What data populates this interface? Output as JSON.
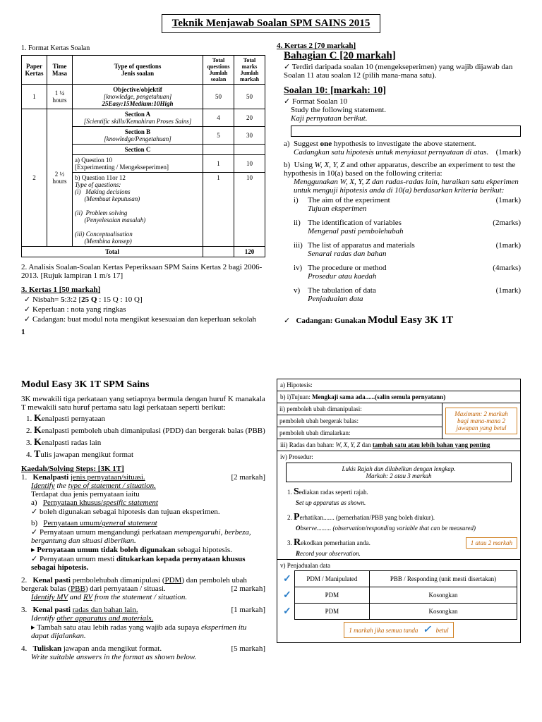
{
  "title": "Teknik Menjawab Soalan SPM SAINS 2015",
  "left": {
    "sec1": "1.   Format Kertas Soalan",
    "tbl": {
      "head": [
        "Paper\nKertas",
        "Time\nMasa",
        "Type of questions\nJenis soalan",
        "Total questions\nJumlah soalan",
        "Total marks\nJumlah markah"
      ],
      "r1": [
        "1",
        "1 ¼ hours",
        "Objective/objektif\n[knowledge, pengetahuan]\n25Easy:15Medium:10High",
        "50",
        "50"
      ],
      "r2_paper": "2",
      "r2_time": "2 ½ hours",
      "secA": [
        "Section A\n[Scientific skills/Kemahiran Proses Sains]",
        "4",
        "20"
      ],
      "secB": [
        "Section B\n[knowledge/Pengetahuan]",
        "5",
        "30"
      ],
      "secC_h": "Section C",
      "secC_a": [
        "a)  Question 10\n[Experimenting / Mengekseperimen]",
        "1",
        "10"
      ],
      "secC_b": [
        "b)  Question 11or 12\nType of questions:\n(i)   Making decisions\n      (Membuat keputusan)\n\n(ii)  Problem solving\n      (Penyelesaian masalah)\n\n(iii) Conceptualisation\n      (Membina konsep)",
        "1",
        "10"
      ],
      "total": [
        "Total",
        "",
        "120"
      ]
    },
    "sec2": "2.   Analisis Soalan-Soalan Kertas Peperiksaan SPM Sains Kertas 2 bagi 2006-2013. [Rujuk lampiran 1 m/s 17]",
    "sec3_h": "3.  Kertas 1 [50 markah]",
    "sec3_items": [
      "Nisbah= 5:3:2 [25 Q : 15 Q : 10 Q]",
      "Keperluan : nota yang ringkas",
      "Cadangan: buat modul nota mengikut kesesuaian dan keperluan sekolah"
    ],
    "pagenum": "1"
  },
  "right": {
    "sec4_h": "4.  Kertas 2 [70 markah]",
    "bahC": "Bahagian C [20 markah]",
    "bahC_desc": "Terdiri daripada soalan 10 (mengekseperimen) yang wajib dijawab dan Soalan 11 atau soalan 12 (pilih mana-mana satu).",
    "s10_h": "Soalan 10: [markah: 10]",
    "s10_fmt": "Format Soalan 10",
    "s10_study": "Study the following statement.",
    "s10_kaji": "Kaji pernyataan berikut.",
    "a_en": "a)  Suggest one hypothesis to investigate the above statement.",
    "a_my": "Cadangkan satu hipotesis untuk menyiasat pernyataan di atas.",
    "a_mk": "(1mark)",
    "b_en": "b)  Using W, X, Y, Z and other apparatus, describe an experiment to test the hypothesis in 10(a) based on the following criteria:",
    "b_my": "Menggunakan W, X, Y, Z dan radas-radas lain, huraikan satu ekperimen untuk menguji hipotesis anda di 10(a) berdasarkan kriteria berikut:",
    "b_items": [
      {
        "n": "i)",
        "en": "The aim of the experiment",
        "my": "Tujuan eksperimen",
        "mk": "(1mark)"
      },
      {
        "n": "ii)",
        "en": "The identification of variables",
        "my": "Mengenal pasti pembolehubah",
        "mk": "(2marks)"
      },
      {
        "n": "iii)",
        "en": "The list of apparatus and materials",
        "my": "Senarai radas dan bahan",
        "mk": "(1mark)"
      },
      {
        "n": "iv)",
        "en": "The procedure or method",
        "my": "Prosedur atau kaedah",
        "mk": "(4marks)"
      },
      {
        "n": "v)",
        "en": "The tabulation of data",
        "my": "Penjadualan data",
        "mk": "(1mark)"
      }
    ],
    "cadangan": "Cadangan: Gunakan Modul Easy 3K 1T"
  },
  "p2left": {
    "h": "Modul Easy 3K 1T SPM Sains",
    "intro": "3K mewakili tiga perkataan yang setiapnya bermula dengan huruf K manakala T mewakili satu huruf pertama satu lagi perkataan seperti berikut:",
    "klist": [
      "Kenalpasti pernyataan",
      "Kenalpasti pemboleh ubah dimanipulasi (PDD) dan bergerak balas (PBB)",
      "Kenalpasti radas lain",
      "Tulis jawapan mengikut format"
    ],
    "steps_h": "Kaedah/Solving Steps: [3K 1T]",
    "s1_h": "1.   Kenalpasti jenis pernyataan/situasi.",
    "s1_mk": "[2 markah]",
    "s1_en": "Identify the type of statement / situation.",
    "s1_t": "Terdapat dua jenis pernyataan iaitu",
    "s1_a": "a)   Pernyataan khusus/spesific statement",
    "s1_a_b": "boleh digunakan sebagai hipotesis dan tujuan eksperimen.",
    "s1_b": "b)   Pernyataan umum/general statement",
    "s1_b_b1": "Pernyataan umum mengandungi perkataan mempengaruhi, berbeza, bergantung dan situasi diberikan.",
    "s1_b_b2": "Pernyataan umum tidak boleh digunakan sebagai hipotesis.",
    "s1_b_b3": "Pernyataan umum mesti ditukarkan kepada pernyataan khusus sebagai hipotesis.",
    "s2_h": "2.   Kenal pasti pembolehubah dimanipulasi (PDM) dan pemboleh ubah bergerak balas (PBB) dari pernyataan / situasi.",
    "s2_mk": "[2 markah]",
    "s2_en": "Identify MV and RV from the statement / situation.",
    "s3_h": "3.   Kenal pasti radas dan bahan lain.",
    "s3_mk": "[1 markah]",
    "s3_en": "Identify other apparatus and materials.",
    "s3_b": "Tambah satu atau lebih radas yang wajib ada supaya eksperimen itu dapat dijalankan.",
    "s4_h": "4.   Tuliskan jawapan anda mengikut format.",
    "s4_mk": "[5 markah]",
    "s4_en": "Write suitable answers in the format as shown below."
  },
  "p2right": {
    "a": "a) Hipotesis:",
    "bi": "b) i)Tujuan: Mengkaji sama ada......(salin semula pernyatann)",
    "bii_1": "ii) pemboleh ubah dimanipulasi:",
    "bii_2": "pemboleh ubah bergerak balas:",
    "bii_3": "pemboleh ubah dimalarkan:",
    "bii_note": "Maximum: 2 markah bagi mana-mana 2 jawapan yang betul",
    "biii": "iii) Radas dan bahan: W, X, Y, Z dan tambah satu atau lebih bahan yang penting",
    "biv": "iv) Prosedur:",
    "biv_box": "Lukis Rajah dan dilabelkan dengan lengkap.\nMarkah: 2 atau 3 markah",
    "p1_en": "Sediakan radas seperti rajah.",
    "p1_it": "Set up apparatus as shown.",
    "p2_en": "Perhatikan....... (pemerhatian/PBB yang boleh diukur).",
    "p2_it": "Observe......... (observation/responding variable that can be measured)",
    "p3_en": "Rekodkan pemerhatian anda.",
    "p3_it": "Record your observation.",
    "p3_note": "1 atau 2 markah",
    "bv": "v) Penjadualan data",
    "tbl_h1": "PDM / Manipulated",
    "tbl_h2": "PBB / Responding (unit mesti disertakan)",
    "tbl_r": "PDM",
    "tbl_k": "Kosongkan",
    "bv_note": "1 markah jika semua tanda           betul"
  }
}
